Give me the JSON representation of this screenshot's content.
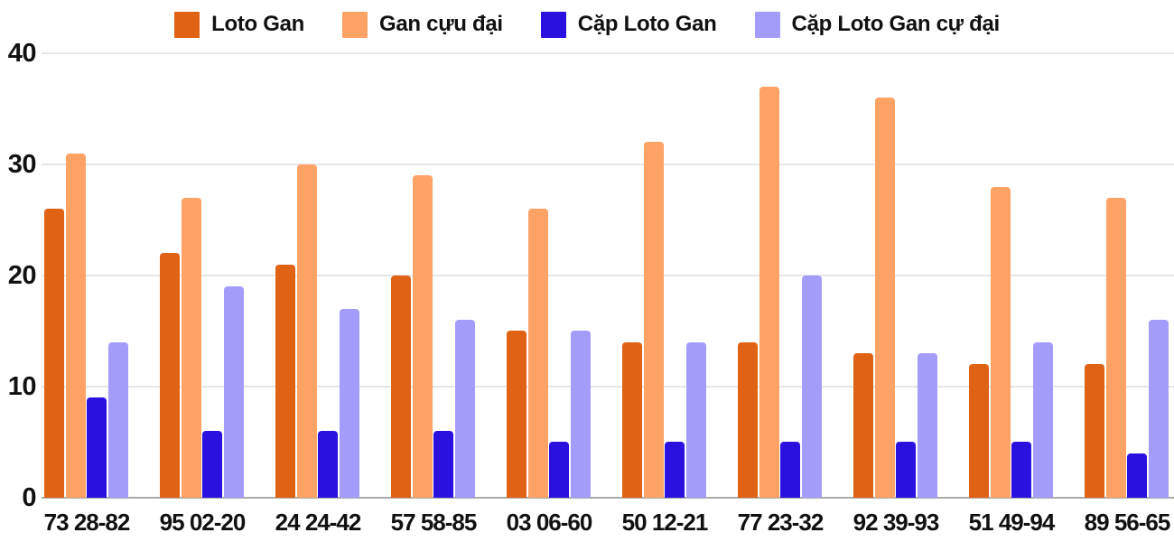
{
  "chart_data": {
    "type": "bar",
    "title": "",
    "xlabel": "",
    "ylabel": "",
    "categories": [
      "73 28-82",
      "95 02-20",
      "24 24-42",
      "57 58-85",
      "03 06-60",
      "50 12-21",
      "77 23-32",
      "92 39-93",
      "51 49-94",
      "89 56-65"
    ],
    "series": [
      {
        "name": "Loto Gan",
        "color": "#e06214",
        "values": [
          26,
          22,
          21,
          20,
          15,
          14,
          14,
          13,
          12,
          12
        ]
      },
      {
        "name": "Gan cựu đại",
        "color": "#ffa266",
        "values": [
          31,
          27,
          30,
          29,
          26,
          32,
          37,
          36,
          28,
          27
        ]
      },
      {
        "name": "Cặp Loto Gan",
        "color": "#2a11e0",
        "values": [
          9,
          6,
          6,
          6,
          5,
          5,
          5,
          5,
          5,
          4
        ]
      },
      {
        "name": "Cặp Loto Gan cự đại",
        "color": "#a49cfa",
        "values": [
          14,
          19,
          17,
          16,
          15,
          14,
          20,
          13,
          14,
          16
        ]
      }
    ],
    "y_ticks": [
      0,
      10,
      20,
      30,
      40
    ],
    "ylim": [
      0,
      40
    ],
    "grid": true,
    "legend_position": "top"
  },
  "colors": {
    "background": "#ffffff",
    "grid_line": "#e6e6e6",
    "axis_line": "#ababab",
    "text": "#111111"
  }
}
